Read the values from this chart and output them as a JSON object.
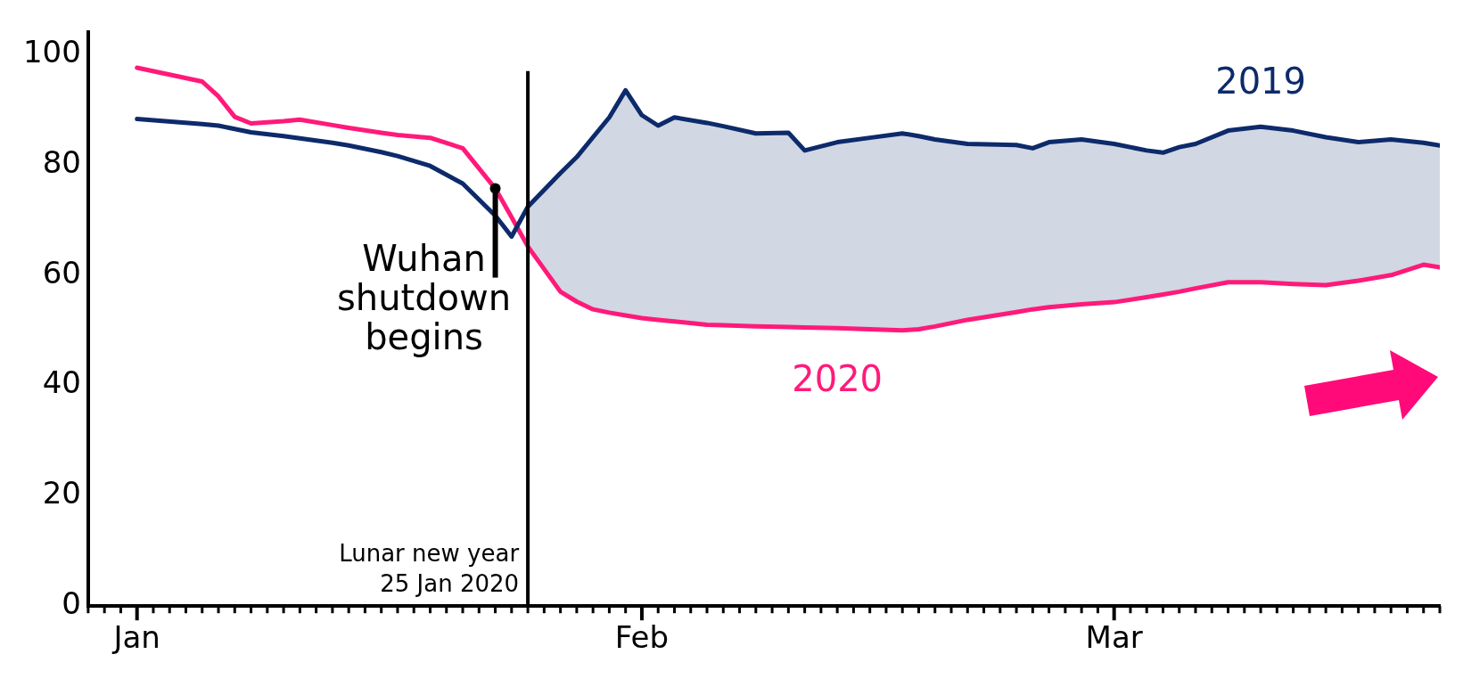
{
  "chart_data": {
    "type": "line",
    "x": [
      "2020-01-01",
      "2020-01-05",
      "2020-01-06",
      "2020-01-07",
      "2020-01-08",
      "2020-01-10",
      "2020-01-11",
      "2020-01-13",
      "2020-01-14",
      "2020-01-16",
      "2020-01-17",
      "2020-01-19",
      "2020-01-21",
      "2020-01-23",
      "2020-01-24",
      "2020-01-25",
      "2020-01-27",
      "2020-01-28",
      "2020-01-29",
      "2020-01-30",
      "2020-01-31",
      "2020-02-01",
      "2020-02-02",
      "2020-02-03",
      "2020-02-05",
      "2020-02-06",
      "2020-02-08",
      "2020-02-10",
      "2020-02-11",
      "2020-02-13",
      "2020-02-15",
      "2020-02-17",
      "2020-02-18",
      "2020-02-19",
      "2020-02-21",
      "2020-02-24",
      "2020-02-25",
      "2020-02-26",
      "2020-02-28",
      "2020-03-01",
      "2020-03-03",
      "2020-03-04",
      "2020-03-05",
      "2020-03-06",
      "2020-03-08",
      "2020-03-10",
      "2020-03-12",
      "2020-03-14",
      "2020-03-16",
      "2020-03-18",
      "2020-03-20",
      "2020-03-21"
    ],
    "series": [
      {
        "name": "2019",
        "color": "#0d2a6b",
        "values": [
          88.3,
          87.4,
          87.1,
          86.5,
          85.9,
          85.2,
          84.8,
          84.0,
          83.5,
          82.3,
          81.6,
          79.8,
          76.6,
          70.8,
          67.0,
          72.4,
          78.5,
          81.4,
          85.0,
          88.6,
          93.5,
          89.0,
          87.1,
          88.6,
          87.6,
          87.0,
          85.7,
          85.8,
          82.6,
          84.1,
          84.9,
          85.7,
          85.2,
          84.6,
          83.8,
          83.6,
          83.0,
          84.1,
          84.6,
          83.8,
          82.6,
          82.2,
          83.2,
          83.8,
          86.2,
          86.9,
          86.2,
          85.0,
          84.1,
          84.6,
          84.0,
          83.5
        ],
        "upper": [
          null,
          null,
          null,
          null,
          null,
          null,
          null,
          null,
          null,
          null,
          null,
          null,
          null,
          null,
          null,
          72.4,
          78.5,
          81.4,
          85.0,
          88.6,
          93.5,
          89.0,
          87.1,
          88.6,
          87.6,
          87.0,
          85.7,
          85.8,
          82.6,
          84.1,
          84.9,
          85.7,
          85.2,
          84.6,
          83.8,
          83.6,
          83.0,
          84.1,
          84.6,
          83.8,
          82.6,
          82.2,
          83.2,
          83.8,
          86.2,
          86.9,
          86.2,
          85.0,
          84.1,
          84.6,
          84.0,
          83.5
        ],
        "lower": [
          null,
          null,
          null,
          null,
          null,
          null,
          null,
          null,
          null,
          null,
          null,
          null,
          null,
          null,
          null,
          65.2,
          57.0,
          55.2,
          53.8,
          53.2,
          52.7,
          52.2,
          51.9,
          51.6,
          51.0,
          50.9,
          50.7,
          50.6,
          50.5,
          50.4,
          50.2,
          50.0,
          50.2,
          50.7,
          51.9,
          53.3,
          53.8,
          54.2,
          54.7,
          55.1,
          56.0,
          56.5,
          57.0,
          57.6,
          58.7,
          58.7,
          58.4,
          58.2,
          59.0,
          60.0,
          61.9,
          61.4
        ]
      },
      {
        "name": "2020",
        "color": "#ff1a7a",
        "values": [
          97.6,
          95.1,
          92.4,
          88.7,
          87.5,
          87.9,
          88.2,
          87.2,
          86.7,
          85.8,
          85.4,
          84.9,
          83.0,
          75.7,
          70.5,
          65.2,
          57.0,
          55.2,
          53.8,
          53.2,
          52.7,
          52.2,
          51.9,
          51.6,
          51.0,
          50.9,
          50.7,
          50.6,
          50.5,
          50.4,
          50.2,
          50.0,
          50.2,
          50.7,
          51.9,
          53.3,
          53.8,
          54.2,
          54.7,
          55.1,
          56.0,
          56.5,
          57.0,
          57.6,
          58.7,
          58.7,
          58.4,
          58.2,
          59.0,
          60.0,
          61.9,
          61.4
        ]
      }
    ],
    "xlim": [
      "2019-12-29",
      "2020-03-21"
    ],
    "xticks": [
      {
        "value": "2019-12-29",
        "label": null
      },
      {
        "value": "2019-12-30",
        "label": null
      },
      {
        "value": "2019-12-31",
        "label": null
      },
      {
        "value": "2020-01-01",
        "label": "Jan"
      },
      {
        "value": "2020-01-02",
        "label": null
      },
      {
        "value": "2020-01-03",
        "label": null
      },
      {
        "value": "2020-01-04",
        "label": null
      },
      {
        "value": "2020-01-05",
        "label": null
      },
      {
        "value": "2020-01-06",
        "label": null
      },
      {
        "value": "2020-01-07",
        "label": null
      },
      {
        "value": "2020-01-08",
        "label": null
      },
      {
        "value": "2020-01-09",
        "label": null
      },
      {
        "value": "2020-01-10",
        "label": null
      },
      {
        "value": "2020-01-11",
        "label": null
      },
      {
        "value": "2020-01-12",
        "label": null
      },
      {
        "value": "2020-01-13",
        "label": null
      },
      {
        "value": "2020-01-14",
        "label": null
      },
      {
        "value": "2020-01-15",
        "label": null
      },
      {
        "value": "2020-01-16",
        "label": null
      },
      {
        "value": "2020-01-17",
        "label": null
      },
      {
        "value": "2020-01-18",
        "label": null
      },
      {
        "value": "2020-01-19",
        "label": null
      },
      {
        "value": "2020-01-20",
        "label": null
      },
      {
        "value": "2020-01-21",
        "label": null
      },
      {
        "value": "2020-01-22",
        "label": null
      },
      {
        "value": "2020-01-23",
        "label": null
      },
      {
        "value": "2020-01-24",
        "label": null
      },
      {
        "value": "2020-01-25",
        "label": null
      },
      {
        "value": "2020-01-26",
        "label": null
      },
      {
        "value": "2020-01-27",
        "label": null
      },
      {
        "value": "2020-01-28",
        "label": null
      },
      {
        "value": "2020-01-29",
        "label": null
      },
      {
        "value": "2020-01-30",
        "label": null
      },
      {
        "value": "2020-01-31",
        "label": null
      },
      {
        "value": "2020-02-01",
        "label": "Feb"
      },
      {
        "value": "2020-02-02",
        "label": null
      },
      {
        "value": "2020-02-03",
        "label": null
      },
      {
        "value": "2020-02-04",
        "label": null
      },
      {
        "value": "2020-02-05",
        "label": null
      },
      {
        "value": "2020-02-06",
        "label": null
      },
      {
        "value": "2020-02-07",
        "label": null
      },
      {
        "value": "2020-02-08",
        "label": null
      },
      {
        "value": "2020-02-09",
        "label": null
      },
      {
        "value": "2020-02-10",
        "label": null
      },
      {
        "value": "2020-02-11",
        "label": null
      },
      {
        "value": "2020-02-12",
        "label": null
      },
      {
        "value": "2020-02-13",
        "label": null
      },
      {
        "value": "2020-02-14",
        "label": null
      },
      {
        "value": "2020-02-15",
        "label": null
      },
      {
        "value": "2020-02-16",
        "label": null
      },
      {
        "value": "2020-02-17",
        "label": null
      },
      {
        "value": "2020-02-18",
        "label": null
      },
      {
        "value": "2020-02-19",
        "label": null
      },
      {
        "value": "2020-02-20",
        "label": null
      },
      {
        "value": "2020-02-21",
        "label": null
      },
      {
        "value": "2020-02-22",
        "label": null
      },
      {
        "value": "2020-02-23",
        "label": null
      },
      {
        "value": "2020-02-24",
        "label": null
      },
      {
        "value": "2020-02-25",
        "label": null
      },
      {
        "value": "2020-02-26",
        "label": null
      },
      {
        "value": "2020-02-27",
        "label": null
      },
      {
        "value": "2020-02-28",
        "label": null
      },
      {
        "value": "2020-02-29",
        "label": null
      },
      {
        "value": "2020-03-01",
        "label": "Mar"
      },
      {
        "value": "2020-03-02",
        "label": null
      },
      {
        "value": "2020-03-03",
        "label": null
      },
      {
        "value": "2020-03-04",
        "label": null
      },
      {
        "value": "2020-03-05",
        "label": null
      },
      {
        "value": "2020-03-06",
        "label": null
      },
      {
        "value": "2020-03-07",
        "label": null
      },
      {
        "value": "2020-03-08",
        "label": null
      },
      {
        "value": "2020-03-09",
        "label": null
      },
      {
        "value": "2020-03-10",
        "label": null
      },
      {
        "value": "2020-03-11",
        "label": null
      },
      {
        "value": "2020-03-12",
        "label": null
      },
      {
        "value": "2020-03-13",
        "label": null
      },
      {
        "value": "2020-03-14",
        "label": null
      },
      {
        "value": "2020-03-15",
        "label": null
      },
      {
        "value": "2020-03-16",
        "label": null
      },
      {
        "value": "2020-03-17",
        "label": null
      },
      {
        "value": "2020-03-18",
        "label": null
      },
      {
        "value": "2020-03-19",
        "label": null
      },
      {
        "value": "2020-03-20",
        "label": null
      },
      {
        "value": "2020-03-21",
        "label": null
      }
    ],
    "ylim": [
      0,
      104
    ],
    "yticks": [
      0,
      20,
      40,
      60,
      80,
      100
    ],
    "ref_lines": [
      {
        "axis": "x",
        "value": "2020-01-25",
        "label": "Lunar new year 25 Jan 2020",
        "color": "#000000"
      }
    ],
    "annotations": [
      {
        "text": "Wuhan shutdown begins",
        "x": "2020-01-23",
        "y": 75.7
      }
    ],
    "grid": false,
    "legend": false,
    "marker": "none",
    "line_style": "solid"
  }
}
